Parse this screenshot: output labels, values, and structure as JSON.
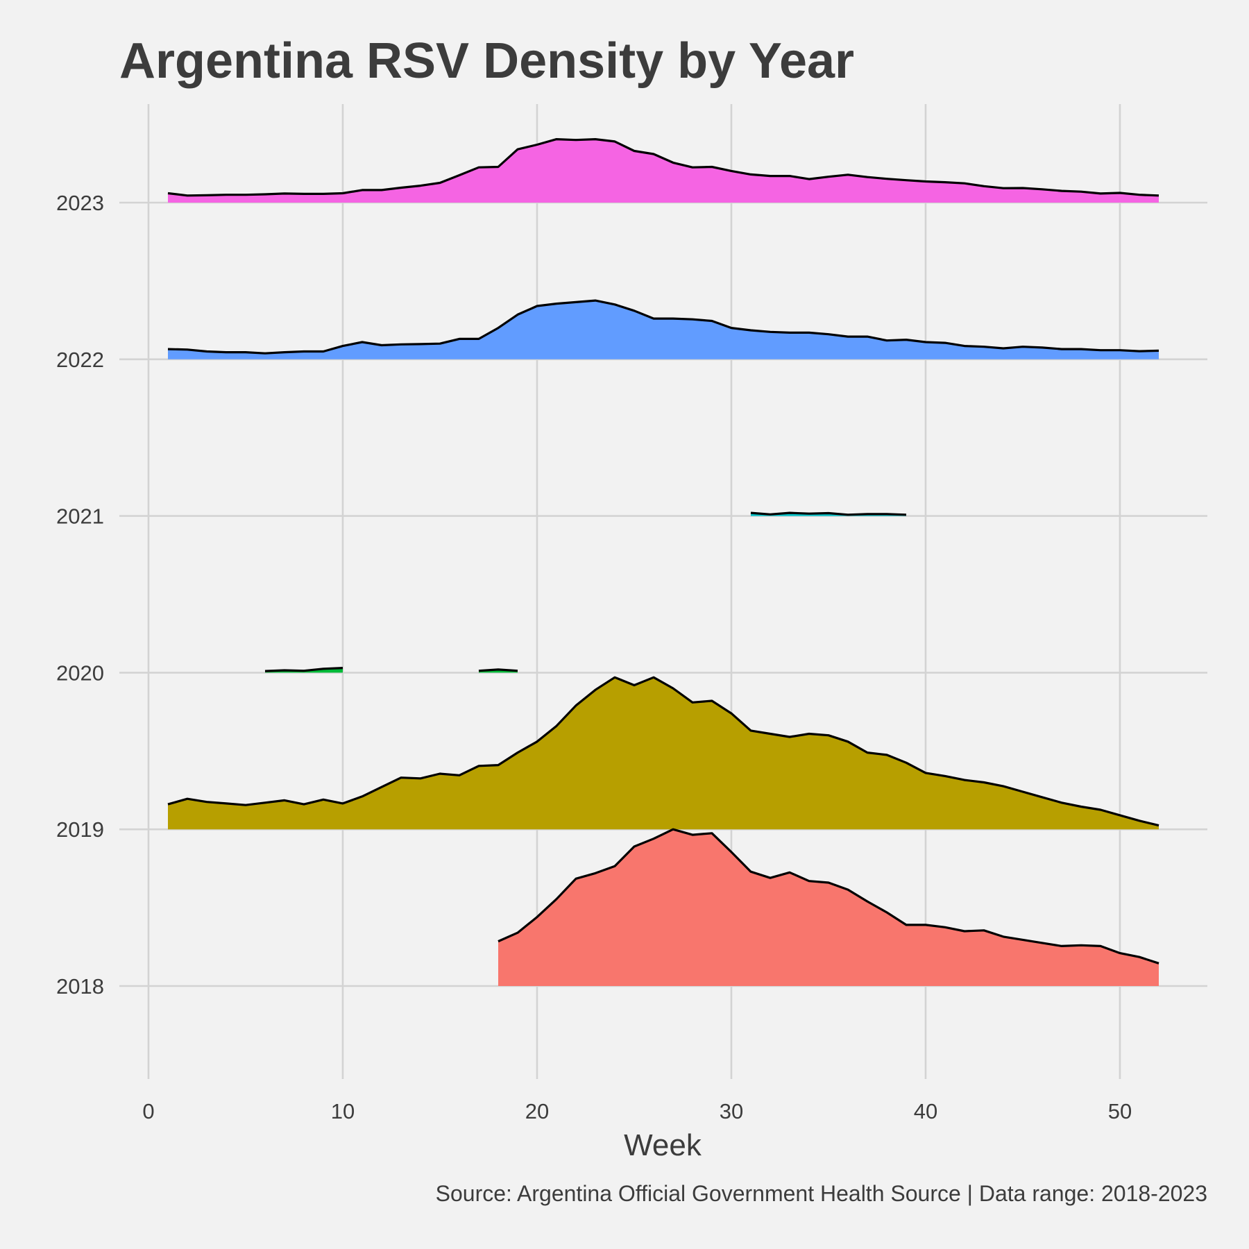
{
  "chart_data": {
    "type": "area",
    "subtype": "ridgeline-density",
    "title": "Argentina RSV Density by Year",
    "xlabel": "Week",
    "ylabel": "",
    "caption": "Source: Argentina Official Government Health Source | Data range: 2018-2023",
    "xlim": [
      -1.5,
      54.5
    ],
    "x_ticks": [
      0,
      10,
      20,
      30,
      40,
      50
    ],
    "y_categories": [
      "2018",
      "2019",
      "2020",
      "2021",
      "2022",
      "2023"
    ],
    "grid": true,
    "legend": "none",
    "series": [
      {
        "name": "2018",
        "color": "#f8766d",
        "segments": [
          {
            "x": [
              18,
              19,
              20,
              21,
              22,
              23,
              24,
              25,
              26,
              27,
              28,
              29,
              30,
              31,
              32,
              33,
              34,
              35,
              36,
              37,
              38,
              39,
              40,
              41,
              42,
              43,
              44,
              45,
              46,
              47,
              48,
              49,
              50,
              51,
              52
            ],
            "y": [
              0.285,
              0.34,
              0.44,
              0.555,
              0.685,
              0.72,
              0.765,
              0.89,
              0.94,
              1.0,
              0.965,
              0.975,
              0.855,
              0.73,
              0.69,
              0.725,
              0.67,
              0.66,
              0.615,
              0.54,
              0.47,
              0.39,
              0.39,
              0.375,
              0.35,
              0.355,
              0.315,
              0.295,
              0.275,
              0.255,
              0.26,
              0.255,
              0.21,
              0.185,
              0.145
            ]
          }
        ]
      },
      {
        "name": "2019",
        "color": "#b79f00",
        "segments": [
          {
            "x": [
              1,
              2,
              3,
              4,
              5,
              6,
              7,
              8,
              9,
              10,
              11,
              12,
              13,
              14,
              15,
              16,
              17,
              18,
              19,
              20,
              21,
              22,
              23,
              24,
              25,
              26,
              27,
              28,
              29,
              30,
              31,
              32,
              33,
              34,
              35,
              36,
              37,
              38,
              39,
              40,
              41,
              42,
              43,
              44,
              45,
              46,
              47,
              48,
              49,
              50,
              51,
              52
            ],
            "y": [
              0.16,
              0.195,
              0.175,
              0.165,
              0.155,
              0.17,
              0.185,
              0.16,
              0.19,
              0.165,
              0.21,
              0.27,
              0.33,
              0.325,
              0.355,
              0.345,
              0.405,
              0.41,
              0.49,
              0.56,
              0.66,
              0.79,
              0.89,
              0.97,
              0.92,
              0.97,
              0.9,
              0.81,
              0.82,
              0.74,
              0.63,
              0.61,
              0.59,
              0.61,
              0.6,
              0.56,
              0.49,
              0.475,
              0.425,
              0.36,
              0.34,
              0.315,
              0.3,
              0.275,
              0.24,
              0.205,
              0.17,
              0.145,
              0.125,
              0.09,
              0.055,
              0.025
            ]
          }
        ]
      },
      {
        "name": "2020",
        "color": "#00ba38",
        "segments": [
          {
            "x": [
              6,
              7,
              8,
              9,
              10
            ],
            "y": [
              0.01,
              0.015,
              0.012,
              0.025,
              0.03
            ]
          },
          {
            "x": [
              17,
              18,
              19
            ],
            "y": [
              0.012,
              0.02,
              0.012
            ]
          }
        ]
      },
      {
        "name": "2021",
        "color": "#00bfc4",
        "segments": [
          {
            "x": [
              31,
              32,
              33,
              34,
              35,
              36,
              37,
              38,
              39
            ],
            "y": [
              0.02,
              0.01,
              0.02,
              0.015,
              0.018,
              0.008,
              0.012,
              0.012,
              0.008
            ]
          }
        ]
      },
      {
        "name": "2022",
        "color": "#619cff",
        "segments": [
          {
            "x": [
              1,
              2,
              3,
              4,
              5,
              6,
              7,
              8,
              9,
              10,
              11,
              12,
              13,
              14,
              15,
              16,
              17,
              18,
              19,
              20,
              21,
              22,
              23,
              24,
              25,
              26,
              27,
              28,
              29,
              30,
              31,
              32,
              33,
              34,
              35,
              36,
              37,
              38,
              39,
              40,
              41,
              42,
              43,
              44,
              45,
              46,
              47,
              48,
              49,
              50,
              51,
              52
            ],
            "y": [
              0.065,
              0.062,
              0.05,
              0.045,
              0.045,
              0.038,
              0.045,
              0.05,
              0.05,
              0.085,
              0.11,
              0.09,
              0.095,
              0.097,
              0.1,
              0.13,
              0.13,
              0.2,
              0.285,
              0.34,
              0.355,
              0.365,
              0.375,
              0.35,
              0.31,
              0.26,
              0.26,
              0.255,
              0.245,
              0.2,
              0.185,
              0.175,
              0.17,
              0.17,
              0.16,
              0.145,
              0.145,
              0.12,
              0.125,
              0.11,
              0.105,
              0.085,
              0.08,
              0.07,
              0.08,
              0.075,
              0.065,
              0.065,
              0.058,
              0.058,
              0.052,
              0.055
            ]
          }
        ]
      },
      {
        "name": "2023",
        "color": "#f564e3",
        "segments": [
          {
            "x": [
              1,
              2,
              3,
              4,
              5,
              6,
              7,
              8,
              9,
              10,
              11,
              12,
              13,
              14,
              15,
              16,
              17,
              18,
              19,
              20,
              21,
              22,
              23,
              24,
              25,
              26,
              27,
              28,
              29,
              30,
              31,
              32,
              33,
              34,
              35,
              36,
              37,
              38,
              39,
              40,
              41,
              42,
              43,
              44,
              45,
              46,
              47,
              48,
              49,
              50,
              51,
              52
            ],
            "y": [
              0.06,
              0.045,
              0.047,
              0.05,
              0.05,
              0.053,
              0.058,
              0.056,
              0.056,
              0.06,
              0.08,
              0.08,
              0.095,
              0.108,
              0.126,
              0.175,
              0.225,
              0.228,
              0.34,
              0.37,
              0.405,
              0.4,
              0.405,
              0.39,
              0.33,
              0.31,
              0.255,
              0.225,
              0.228,
              0.202,
              0.18,
              0.17,
              0.17,
              0.15,
              0.165,
              0.178,
              0.163,
              0.152,
              0.143,
              0.135,
              0.13,
              0.123,
              0.105,
              0.092,
              0.093,
              0.085,
              0.075,
              0.07,
              0.058,
              0.062,
              0.05,
              0.045
            ]
          }
        ]
      }
    ]
  }
}
